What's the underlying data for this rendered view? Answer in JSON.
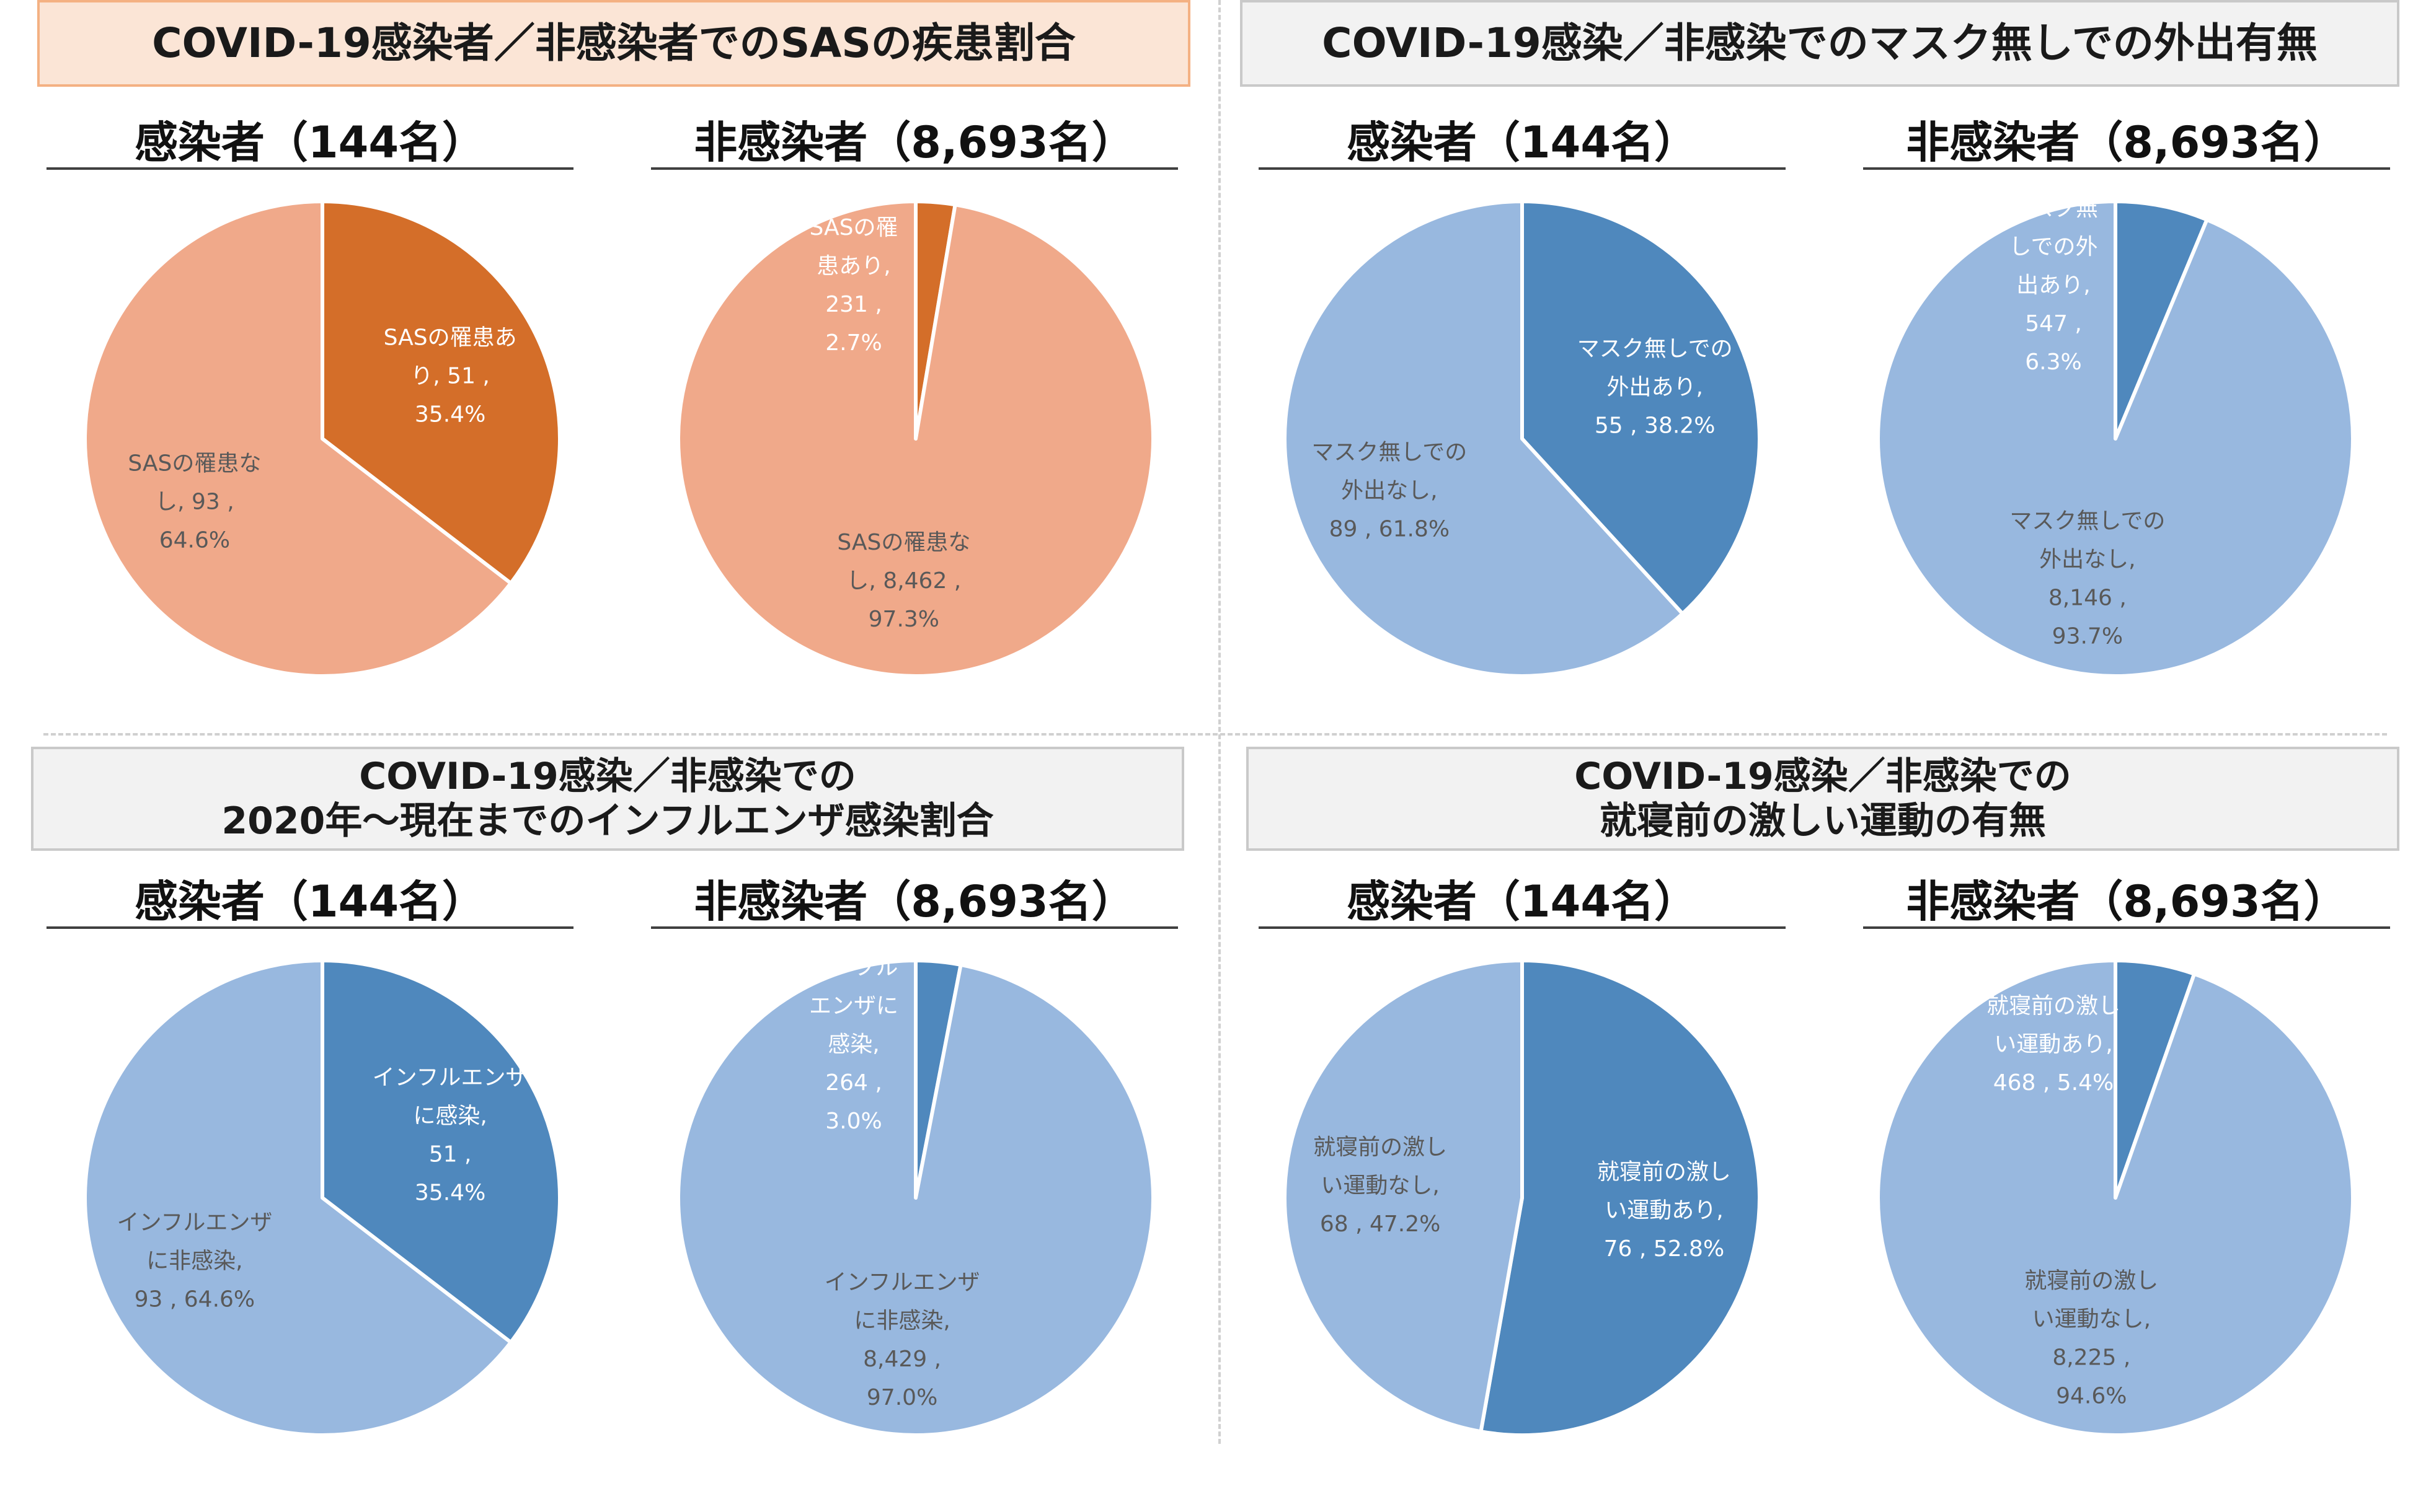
{
  "colors": {
    "orange_small": "#d46e29",
    "orange_large": "#f0a98a",
    "blue_small": "#4f88bd",
    "blue_large": "#98b8df",
    "label_dark": "#595959",
    "label_light": "#ffffff"
  },
  "panels": [
    {
      "title_line1": "COVID-19感染者／非感染者でのSASの疾患割合",
      "title_line2": "",
      "left_label": "感染者（144名）",
      "right_label": "非感染者（8,693名）"
    },
    {
      "title_line1": "COVID-19感染／非感染でのマスク無しでの外出有無",
      "title_line2": "",
      "left_label": "感染者（144名）",
      "right_label": "非感染者（8,693名）"
    },
    {
      "title_line1": "COVID-19感染／非感染での",
      "title_line2": "2020年～現在までのインフルエンザ感染割合",
      "left_label": "感染者（144名）",
      "right_label": "非感染者（8,693名）"
    },
    {
      "title_line1": "COVID-19感染／非感染での",
      "title_line2": "就寝前の激しい運動の有無",
      "left_label": "感染者（144名）",
      "right_label": "非感染者（8,693名）"
    }
  ],
  "chart_data": [
    {
      "type": "pie",
      "title": "感染者（144名）",
      "slices": [
        {
          "value": 51,
          "percent": 35.4,
          "label_lines": [
            "SASの罹患あ",
            "り, 51 ,",
            "35.4%"
          ],
          "color": "#d46e29"
        },
        {
          "value": 93,
          "percent": 64.6,
          "label_lines": [
            "SASの罹患な",
            "し, 93 ,",
            "64.6%"
          ],
          "color": "#f0a98a"
        }
      ]
    },
    {
      "type": "pie",
      "title": "非感染者（8,693名）",
      "slices": [
        {
          "value": 231,
          "percent": 2.7,
          "label_lines": [
            "SASの罹",
            "患あり,",
            "231 ,",
            "2.7%"
          ],
          "color": "#d46e29"
        },
        {
          "value": 8462,
          "percent": 97.3,
          "label_lines": [
            "SASの罹患な",
            "し, 8,462 ,",
            "97.3%"
          ],
          "color": "#f0a98a"
        }
      ]
    },
    {
      "type": "pie",
      "title": "感染者（144名）",
      "slices": [
        {
          "value": 55,
          "percent": 38.2,
          "label_lines": [
            "マスク無しでの",
            "外出あり,",
            "55 , 38.2%"
          ],
          "color": "#4f88bd"
        },
        {
          "value": 89,
          "percent": 61.8,
          "label_lines": [
            "マスク無しでの",
            "外出なし,",
            "89 , 61.8%"
          ],
          "color": "#98b8df"
        }
      ]
    },
    {
      "type": "pie",
      "title": "非感染者（8,693名）",
      "slices": [
        {
          "value": 547,
          "percent": 6.3,
          "label_lines": [
            "マスク無",
            "しでの外",
            "出あり,",
            "547 ,",
            "6.3%"
          ],
          "color": "#4f88bd"
        },
        {
          "value": 8146,
          "percent": 93.7,
          "label_lines": [
            "マスク無しでの",
            "外出なし,",
            "8,146 ,",
            "93.7%"
          ],
          "color": "#98b8df"
        }
      ]
    },
    {
      "type": "pie",
      "title": "感染者（144名）",
      "slices": [
        {
          "value": 51,
          "percent": 35.4,
          "label_lines": [
            "インフルエンザ",
            "に感染,",
            "51 ,",
            "35.4%"
          ],
          "color": "#4f88bd"
        },
        {
          "value": 93,
          "percent": 64.6,
          "label_lines": [
            "インフルエンザ",
            "に非感染,",
            "93 , 64.6%"
          ],
          "color": "#98b8df"
        }
      ]
    },
    {
      "type": "pie",
      "title": "非感染者（8,693名）",
      "slices": [
        {
          "value": 264,
          "percent": 3.0,
          "label_lines": [
            "インフル",
            "エンザに",
            "感染,",
            "264 ,",
            "3.0%"
          ],
          "color": "#4f88bd"
        },
        {
          "value": 8429,
          "percent": 97.0,
          "label_lines": [
            "インフルエンザ",
            "に非感染,",
            "8,429 ,",
            "97.0%"
          ],
          "color": "#98b8df"
        }
      ]
    },
    {
      "type": "pie",
      "title": "感染者（144名）",
      "slices": [
        {
          "value": 76,
          "percent": 52.8,
          "label_lines": [
            "就寝前の激し",
            "い運動あり,",
            "76 , 52.8%"
          ],
          "color": "#4f88bd"
        },
        {
          "value": 68,
          "percent": 47.2,
          "label_lines": [
            "就寝前の激し",
            "い運動なし,",
            "68 , 47.2%"
          ],
          "color": "#98b8df"
        }
      ]
    },
    {
      "type": "pie",
      "title": "非感染者（8,693名）",
      "slices": [
        {
          "value": 468,
          "percent": 5.4,
          "label_lines": [
            "就寝前の激し",
            "い運動あり,",
            "468 , 5.4%"
          ],
          "color": "#4f88bd"
        },
        {
          "value": 8225,
          "percent": 94.6,
          "label_lines": [
            "就寝前の激し",
            "い運動なし,",
            "8,225 ,",
            "94.6%"
          ],
          "color": "#98b8df"
        }
      ]
    }
  ]
}
